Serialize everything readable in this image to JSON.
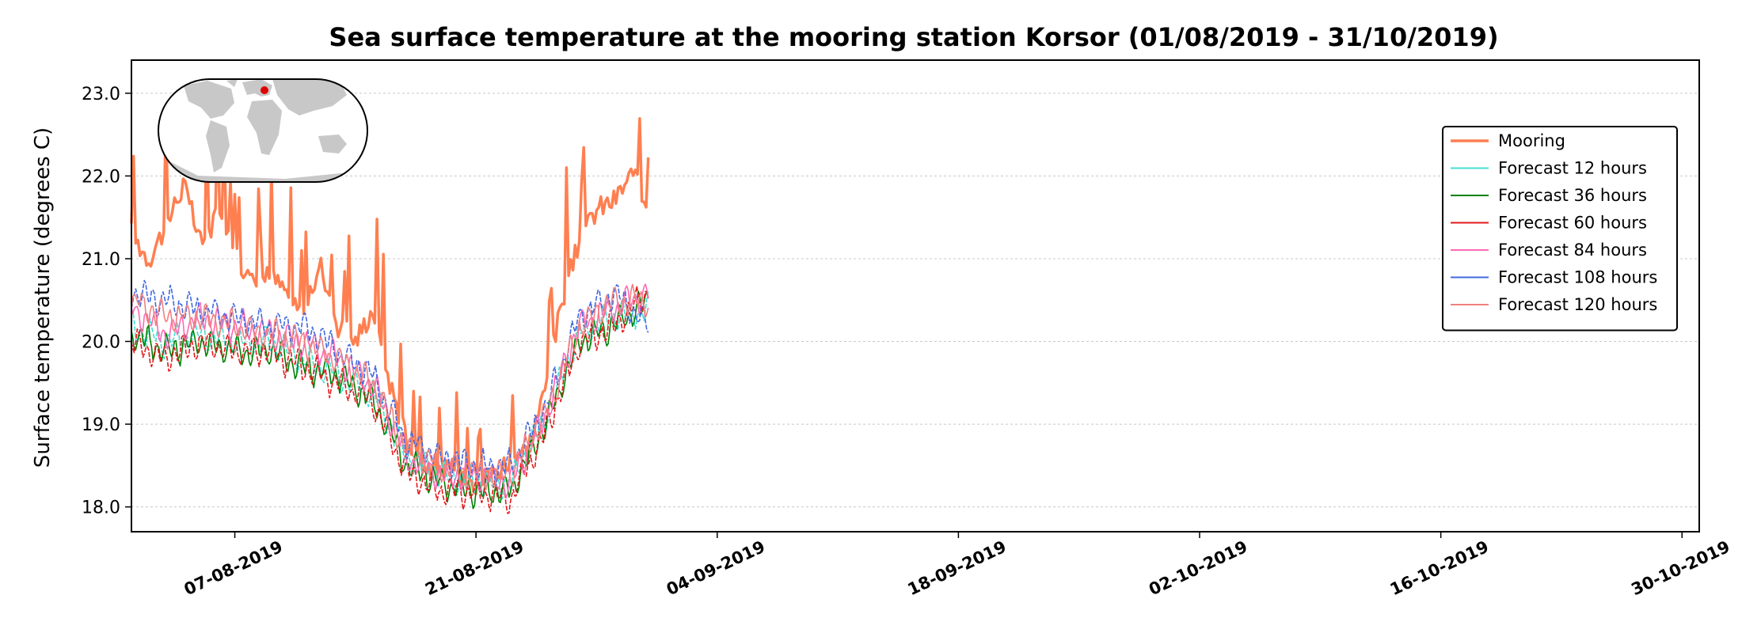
{
  "chart_data": {
    "type": "line",
    "title": "Sea surface temperature at the mooring station Korsor (01/08/2019 - 31/10/2019)",
    "xlabel": "",
    "ylabel": "Surface temperature (degrees C)",
    "xlim": [
      "2019-08-01",
      "2019-10-31"
    ],
    "ylim": [
      17.7,
      23.4
    ],
    "x_ticks": [
      "07-08-2019",
      "21-08-2019",
      "04-09-2019",
      "18-09-2019",
      "02-10-2019",
      "16-10-2019",
      "30-10-2019"
    ],
    "y_ticks": [
      "18.0",
      "19.0",
      "20.0",
      "21.0",
      "22.0",
      "23.0"
    ],
    "grid": "horizontal dotted",
    "legend_position": "upper-right",
    "inset_map": "world map with station marker",
    "series": [
      {
        "name": "Mooring",
        "color": "#ff7f50",
        "x": [
          "2019-08-01",
          "2019-08-02",
          "2019-08-03",
          "2019-08-04",
          "2019-08-05",
          "2019-08-06",
          "2019-08-07",
          "2019-08-08",
          "2019-08-09",
          "2019-08-10",
          "2019-08-11",
          "2019-08-12",
          "2019-08-13",
          "2019-08-14",
          "2019-08-15",
          "2019-08-16",
          "2019-08-17",
          "2019-08-18",
          "2019-08-19",
          "2019-08-20",
          "2019-08-21",
          "2019-08-22",
          "2019-08-23",
          "2019-08-24",
          "2019-08-25",
          "2019-08-26",
          "2019-08-27",
          "2019-08-28",
          "2019-08-29",
          "2019-08-30",
          "2019-08-31"
        ],
        "values": [
          21.4,
          21.1,
          21.5,
          22.0,
          21.3,
          21.6,
          21.2,
          20.8,
          20.9,
          20.7,
          20.4,
          21.0,
          20.3,
          20.1,
          20.5,
          19.6,
          18.9,
          18.6,
          18.6,
          18.5,
          18.4,
          18.5,
          18.7,
          18.8,
          19.5,
          20.6,
          21.3,
          21.7,
          21.8,
          22.1,
          21.8
        ]
      },
      {
        "name": "Forecast 12 hours",
        "color": "#40e0d0",
        "x": [
          "2019-08-01",
          "2019-08-03",
          "2019-08-05",
          "2019-08-07",
          "2019-08-09",
          "2019-08-11",
          "2019-08-13",
          "2019-08-15",
          "2019-08-17",
          "2019-08-19",
          "2019-08-21",
          "2019-08-23",
          "2019-08-25",
          "2019-08-27",
          "2019-08-29",
          "2019-08-31"
        ],
        "values": [
          20.2,
          20.0,
          20.1,
          20.0,
          20.0,
          19.8,
          19.6,
          19.4,
          18.6,
          18.4,
          18.3,
          18.3,
          19.1,
          20.1,
          20.3,
          20.4
        ]
      },
      {
        "name": "Forecast 36 hours",
        "color": "#008000",
        "x": [
          "2019-08-01",
          "2019-08-03",
          "2019-08-05",
          "2019-08-07",
          "2019-08-09",
          "2019-08-11",
          "2019-08-13",
          "2019-08-15",
          "2019-08-17",
          "2019-08-19",
          "2019-08-21",
          "2019-08-23",
          "2019-08-25",
          "2019-08-27",
          "2019-08-29",
          "2019-08-31"
        ],
        "values": [
          20.1,
          19.9,
          20.0,
          19.9,
          19.9,
          19.7,
          19.6,
          19.3,
          18.5,
          18.3,
          18.2,
          18.2,
          19.0,
          20.0,
          20.2,
          20.5
        ]
      },
      {
        "name": "Forecast 60 hours",
        "color": "#e31a1c",
        "x": [
          "2019-08-01",
          "2019-08-03",
          "2019-08-05",
          "2019-08-07",
          "2019-08-09",
          "2019-08-11",
          "2019-08-13",
          "2019-08-15",
          "2019-08-17",
          "2019-08-19",
          "2019-08-21",
          "2019-08-23",
          "2019-08-25",
          "2019-08-27",
          "2019-08-29",
          "2019-08-31"
        ],
        "values": [
          20.0,
          19.8,
          20.0,
          19.9,
          19.9,
          19.7,
          19.5,
          19.3,
          18.4,
          18.2,
          18.2,
          18.1,
          18.9,
          20.0,
          20.2,
          20.6
        ]
      },
      {
        "name": "Forecast 84 hours",
        "color": "#ff69b4",
        "x": [
          "2019-08-01",
          "2019-08-03",
          "2019-08-05",
          "2019-08-07",
          "2019-08-09",
          "2019-08-11",
          "2019-08-13",
          "2019-08-15",
          "2019-08-17",
          "2019-08-19",
          "2019-08-21",
          "2019-08-23",
          "2019-08-25",
          "2019-08-27",
          "2019-08-29",
          "2019-08-31"
        ],
        "values": [
          20.4,
          20.1,
          20.3,
          20.2,
          20.1,
          20.0,
          19.8,
          19.5,
          18.6,
          18.4,
          18.4,
          18.3,
          19.1,
          20.2,
          20.4,
          20.6
        ]
      },
      {
        "name": "Forecast 108 hours",
        "color": "#4169e1",
        "x": [
          "2019-08-01",
          "2019-08-03",
          "2019-08-05",
          "2019-08-07",
          "2019-08-09",
          "2019-08-11",
          "2019-08-13",
          "2019-08-15",
          "2019-08-17",
          "2019-08-19",
          "2019-08-21",
          "2019-08-23",
          "2019-08-25",
          "2019-08-27",
          "2019-08-29",
          "2019-08-31"
        ],
        "values": [
          20.6,
          20.5,
          20.4,
          20.3,
          20.2,
          20.2,
          19.9,
          19.6,
          18.8,
          18.6,
          18.5,
          18.5,
          19.2,
          20.3,
          20.6,
          20.2
        ]
      },
      {
        "name": "Forecast 120 hours",
        "color": "#f08080",
        "x": [
          "2019-08-01",
          "2019-08-03",
          "2019-08-05",
          "2019-08-07",
          "2019-08-09",
          "2019-08-11",
          "2019-08-13",
          "2019-08-15",
          "2019-08-17",
          "2019-08-19",
          "2019-08-21",
          "2019-08-23",
          "2019-08-25",
          "2019-08-27",
          "2019-08-29",
          "2019-08-31"
        ],
        "values": [
          20.5,
          20.3,
          20.3,
          20.2,
          20.1,
          20.0,
          19.8,
          19.5,
          18.7,
          18.5,
          18.4,
          18.4,
          19.1,
          20.2,
          20.5,
          20.5
        ]
      }
    ]
  }
}
